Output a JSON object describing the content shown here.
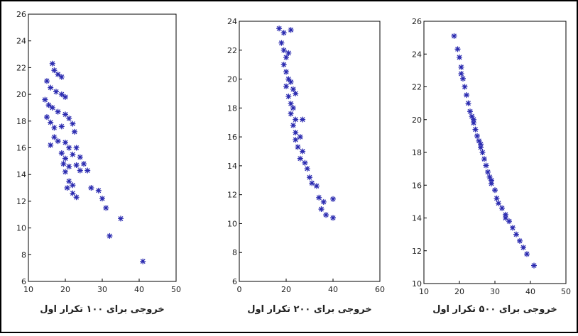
{
  "chart_data": [
    {
      "type": "scatter",
      "caption": "خروجی برای ۱۰۰ تکرار اول",
      "color": "#2b2bb0",
      "x": [
        16.5,
        17,
        18,
        19,
        15,
        16,
        17.5,
        19,
        20,
        14.5,
        15.5,
        16.5,
        18,
        20,
        21,
        15,
        16,
        17,
        19,
        22,
        22.5,
        17,
        18,
        20,
        16,
        21,
        23,
        19,
        20,
        22,
        24,
        19.5,
        21,
        23,
        25,
        20,
        24,
        26,
        21,
        22,
        20.5,
        22,
        23,
        27,
        29,
        30,
        31,
        35,
        32,
        41
      ],
      "values": [
        22.3,
        21.8,
        21.5,
        21.3,
        21,
        20.5,
        20.2,
        20,
        19.8,
        19.6,
        19.2,
        19,
        18.7,
        18.5,
        18.2,
        18.3,
        17.9,
        17.5,
        17.6,
        17.8,
        17.2,
        16.8,
        16.5,
        16.4,
        16.2,
        16,
        16,
        15.6,
        15.2,
        15.5,
        15.3,
        14.8,
        14.6,
        14.7,
        14.8,
        14.2,
        14.3,
        14.3,
        13.5,
        13.2,
        13,
        12.6,
        12.3,
        13,
        12.8,
        12.2,
        11.5,
        10.7,
        9.4,
        7.5
      ],
      "xlim": [
        10,
        50
      ],
      "xticks": [
        10,
        20,
        30,
        40,
        50
      ],
      "ylim": [
        6,
        26
      ],
      "yticks": [
        6,
        8,
        10,
        12,
        14,
        16,
        18,
        20,
        22,
        24,
        26
      ]
    },
    {
      "type": "scatter",
      "caption": "خروجی برای ۲۰۰ تکرار اول",
      "color": "#2b2bb0",
      "x": [
        17,
        19,
        22,
        18,
        19,
        20,
        19,
        20,
        21,
        22,
        20,
        24,
        21,
        22,
        23,
        22,
        24,
        27,
        23,
        24,
        24,
        25,
        27,
        26,
        28,
        29,
        30,
        31,
        33,
        34,
        36,
        40,
        35,
        37,
        40,
        26,
        21,
        23
      ],
      "values": [
        23.5,
        23.2,
        23.4,
        22.5,
        22,
        21.5,
        21,
        20.5,
        20,
        19.8,
        19.5,
        19,
        18.8,
        18.3,
        18,
        17.6,
        17.2,
        17.2,
        16.8,
        16.3,
        15.8,
        15.3,
        15,
        14.5,
        14.2,
        13.8,
        13.2,
        12.8,
        12.6,
        11.8,
        11.5,
        11.7,
        11,
        10.6,
        10.4,
        16,
        21.8,
        19.3
      ],
      "xlim": [
        0,
        60
      ],
      "xticks": [
        0,
        20,
        40,
        60
      ],
      "ylim": [
        6,
        24
      ],
      "yticks": [
        6,
        8,
        10,
        12,
        14,
        16,
        18,
        20,
        22,
        24
      ]
    },
    {
      "type": "scatter",
      "caption": "خروجی برای ۵۰۰ تکرار اول",
      "color": "#2b2bb0",
      "x": [
        18.5,
        19.5,
        20,
        20.5,
        21,
        21.5,
        22,
        22.5,
        23,
        23.5,
        24,
        24.5,
        25,
        25.5,
        26,
        26.5,
        27,
        27.5,
        28,
        28.5,
        29,
        30,
        30.5,
        31,
        32,
        33,
        34,
        35,
        36,
        37,
        38,
        39,
        41,
        20.5,
        24,
        26,
        29,
        33
      ],
      "values": [
        25.1,
        24.3,
        23.8,
        23.2,
        22.5,
        22,
        21.5,
        21,
        20.5,
        20.2,
        19.8,
        19.4,
        19,
        18.7,
        18.3,
        18,
        17.6,
        17.2,
        16.8,
        16.5,
        16.1,
        15.7,
        15.2,
        14.9,
        14.6,
        14.2,
        13.8,
        13.4,
        13,
        12.6,
        12.2,
        11.8,
        11.1,
        22.8,
        20,
        18.5,
        16.3,
        14
      ],
      "xlim": [
        10,
        50
      ],
      "xticks": [
        10,
        20,
        30,
        40,
        50
      ],
      "ylim": [
        10,
        26
      ],
      "yticks": [
        10,
        12,
        14,
        16,
        18,
        20,
        22,
        24,
        26
      ]
    }
  ]
}
